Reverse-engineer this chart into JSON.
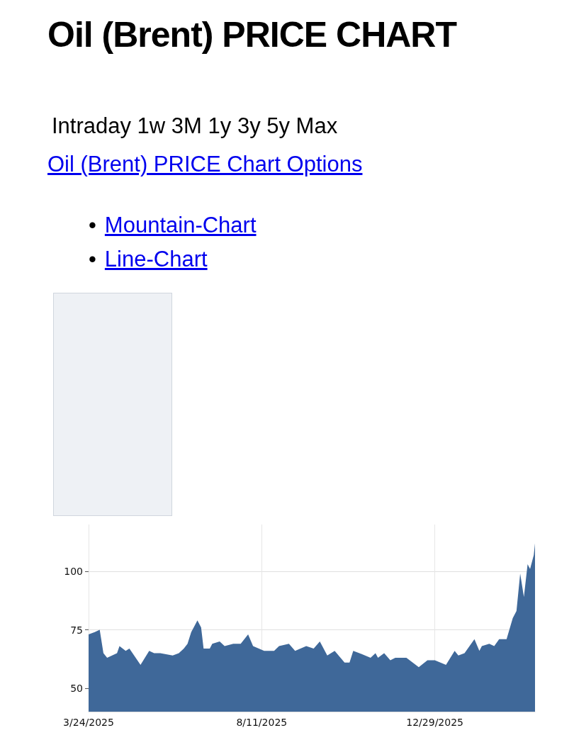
{
  "chart_data": {
    "type": "area",
    "title": "Oil (Brent) PRICE CHART",
    "annotations": [
      "Intraday 1w 3M 1y 3y 5y Max",
      "Oil (Brent) PRICE Chart Options",
      "• Mountain-Chart",
      "• Line-Chart"
    ],
    "x": [
      "2025-03-24",
      "2025-03-29",
      "2025-04-02",
      "2025-04-05",
      "2025-04-08",
      "2025-04-12",
      "2025-04-16",
      "2025-04-18",
      "2025-04-23",
      "2025-04-26",
      "2025-05-05",
      "2025-05-12",
      "2025-05-16",
      "2025-05-21",
      "2025-05-31",
      "2025-06-05",
      "2025-06-09",
      "2025-06-12",
      "2025-06-15",
      "2025-06-17",
      "2025-06-20",
      "2025-06-23",
      "2025-06-25",
      "2025-06-30",
      "2025-07-02",
      "2025-07-08",
      "2025-07-12",
      "2025-07-19",
      "2025-07-25",
      "2025-07-31",
      "2025-08-04",
      "2025-08-13",
      "2025-08-21",
      "2025-08-25",
      "2025-09-02",
      "2025-09-07",
      "2025-09-16",
      "2025-09-22",
      "2025-09-27",
      "2025-10-03",
      "2025-10-09",
      "2025-10-17",
      "2025-10-21",
      "2025-10-24",
      "2025-10-29",
      "2025-11-07",
      "2025-11-11",
      "2025-11-13",
      "2025-11-18",
      "2025-11-23",
      "2025-11-27",
      "2025-12-06",
      "2025-12-16",
      "2025-12-23",
      "2025-12-29",
      "2026-01-07",
      "2026-01-14",
      "2026-01-17",
      "2026-01-22",
      "2026-01-30",
      "2026-02-03",
      "2026-02-05",
      "2026-02-11",
      "2026-02-15",
      "2026-02-19",
      "2026-02-25",
      "2026-03-02",
      "2026-03-05",
      "2026-03-08",
      "2026-03-11",
      "2026-03-14",
      "2026-03-16",
      "2026-03-19",
      "2026-03-20"
    ],
    "series": [
      {
        "color": "#3f6899",
        "values": [
          73,
          74,
          75,
          65,
          63,
          64,
          65,
          68,
          66,
          67,
          60,
          66,
          65,
          65,
          64,
          65,
          67,
          69,
          74,
          76,
          79,
          76,
          67,
          67,
          69,
          70,
          68,
          69,
          69,
          73,
          68,
          66,
          66,
          68,
          69,
          66,
          68,
          67,
          70,
          64,
          66,
          61,
          61,
          66,
          65,
          63,
          65,
          63,
          65,
          62,
          63,
          63,
          59,
          62,
          62,
          60,
          66,
          64,
          65,
          71,
          66,
          68,
          69,
          68,
          71,
          71,
          80,
          83,
          99,
          89,
          103,
          101,
          107,
          112
        ]
      }
    ],
    "xlim": [
      "2025-03-24",
      "2026-03-20"
    ],
    "xticks": [
      {
        "value": "2025-03-24",
        "label": "3/24/2025"
      },
      {
        "value": "2025-08-11",
        "label": "8/11/2025"
      },
      {
        "value": "2025-12-29",
        "label": "12/29/2025"
      }
    ],
    "ylim": [
      40,
      120
    ],
    "yticks": [
      50,
      75,
      100
    ],
    "grid": true
  }
}
